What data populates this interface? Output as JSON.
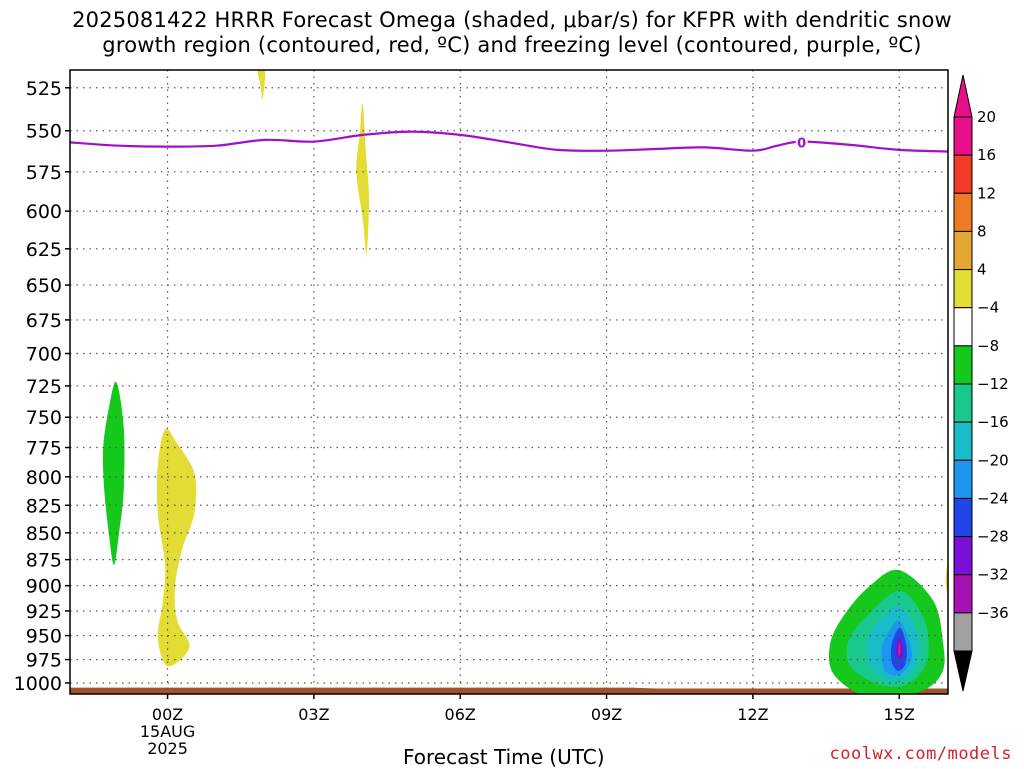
{
  "title_line1": "2025081422 HRRR Forecast Omega (shaded, μbar/s) for KFPR with dendritic snow",
  "title_line2": "growth region (contoured, red, ºC) and freezing level (contoured, purple, ºC)",
  "credit": "coolwx.com/models",
  "chart_data": {
    "type": "time-height contour",
    "xlabel": "Forecast Time (UTC)",
    "x_ticks": [
      {
        "label": "00Z",
        "hour": 0,
        "extra": [
          "15AUG",
          "2025"
        ]
      },
      {
        "label": "03Z",
        "hour": 3
      },
      {
        "label": "06Z",
        "hour": 6
      },
      {
        "label": "09Z",
        "hour": 9
      },
      {
        "label": "12Z",
        "hour": 12
      },
      {
        "label": "15Z",
        "hour": 15
      }
    ],
    "xlim": [
      -2,
      16
    ],
    "y_ticks": [
      525,
      550,
      575,
      600,
      625,
      650,
      675,
      700,
      725,
      750,
      775,
      800,
      825,
      850,
      875,
      900,
      925,
      950,
      975,
      1000
    ],
    "ylim": [
      1012,
      515
    ],
    "ylog": true,
    "grid": true,
    "colorbar": {
      "labels": [
        "20",
        "16",
        "12",
        "8",
        "4",
        "−4",
        "−8",
        "−12",
        "−16",
        "−20",
        "−24",
        "−28",
        "−32",
        "−36"
      ],
      "colors": [
        "#e8108a",
        "#f03c28",
        "#ee7a24",
        "#e6a732",
        "#e3dc34",
        "#ffffff",
        "#14c81c",
        "#18c88c",
        "#18bcc8",
        "#1c96ee",
        "#2046e8",
        "#7a10d8",
        "#a812b4",
        "#a0a0a0"
      ],
      "top_arrow_color": "#e8108a",
      "bottom_arrow_color": "#000000"
    },
    "freezing_level": {
      "color": "#a010c8",
      "label": "0",
      "label_at": [
        13.0,
        557
      ],
      "points": [
        [
          -2,
          557
        ],
        [
          -1,
          559
        ],
        [
          0,
          559.5
        ],
        [
          1,
          559
        ],
        [
          2,
          555.5
        ],
        [
          3,
          556.5
        ],
        [
          4,
          552.5
        ],
        [
          5,
          550.5
        ],
        [
          6,
          552.5
        ],
        [
          7,
          557
        ],
        [
          8,
          561.5
        ],
        [
          9,
          562
        ],
        [
          10,
          561
        ],
        [
          11,
          560
        ],
        [
          12,
          562
        ],
        [
          12.5,
          559
        ],
        [
          13,
          556.5
        ],
        [
          14,
          558.5
        ],
        [
          15,
          561.5
        ],
        [
          16,
          562.5
        ]
      ]
    },
    "omega_regions": [
      {
        "value": "4 to 8",
        "color": "#e3dc34",
        "points": [
          [
            1.85,
            515
          ],
          [
            2.0,
            515
          ],
          [
            1.95,
            531
          ],
          [
            1.9,
            523
          ]
        ]
      },
      {
        "value": "4 to 8",
        "color": "#e3dc34",
        "points": [
          [
            4.0,
            534
          ],
          [
            4.07,
            565
          ],
          [
            4.13,
            592
          ],
          [
            4.08,
            628
          ],
          [
            4.0,
            605
          ],
          [
            3.87,
            575
          ],
          [
            3.94,
            552
          ]
        ]
      },
      {
        "value": "−4 to −8",
        "color": "#14c81c",
        "points": [
          [
            -1.05,
            722
          ],
          [
            -0.9,
            758
          ],
          [
            -0.9,
            812
          ],
          [
            -1.0,
            852
          ],
          [
            -1.1,
            880
          ],
          [
            -1.2,
            852
          ],
          [
            -1.3,
            810
          ],
          [
            -1.32,
            775
          ],
          [
            -1.2,
            742
          ]
        ]
      },
      {
        "value": "4 to 8",
        "color": "#e3dc34",
        "points": [
          [
            -0.05,
            760
          ],
          [
            0.2,
            772
          ],
          [
            0.55,
            797
          ],
          [
            0.55,
            832
          ],
          [
            0.3,
            865
          ],
          [
            0.15,
            902
          ],
          [
            0.2,
            935
          ],
          [
            0.45,
            962
          ],
          [
            0.0,
            982
          ],
          [
            -0.2,
            952
          ],
          [
            -0.1,
            917
          ],
          [
            -0.05,
            880
          ],
          [
            -0.2,
            832
          ],
          [
            -0.2,
            790
          ]
        ]
      },
      {
        "value": "4 to 8",
        "color": "#e3dc34",
        "points": [
          [
            16.05,
            870
          ],
          [
            16.05,
            915
          ],
          [
            15.95,
            895
          ]
        ]
      },
      {
        "value": "−4 to −8",
        "color": "#14c81c",
        "points": [
          [
            15.0,
            885
          ],
          [
            15.7,
            915
          ],
          [
            15.9,
            958
          ],
          [
            15.9,
            986
          ],
          [
            15.6,
            1005
          ],
          [
            15.0,
            1015
          ],
          [
            14.4,
            1015
          ],
          [
            13.95,
            1005
          ],
          [
            13.6,
            985
          ],
          [
            13.6,
            955
          ],
          [
            13.9,
            927
          ],
          [
            14.4,
            900
          ]
        ]
      },
      {
        "value": "−8 to −12",
        "color": "#18c88c",
        "points": [
          [
            15.0,
            905
          ],
          [
            15.5,
            932
          ],
          [
            15.6,
            968
          ],
          [
            15.4,
            992
          ],
          [
            15.0,
            1004
          ],
          [
            14.5,
            1000
          ],
          [
            14.0,
            982
          ],
          [
            13.95,
            957
          ],
          [
            14.3,
            932
          ]
        ]
      },
      {
        "value": "−12 to −16",
        "color": "#18bcc8",
        "points": [
          [
            15.0,
            920
          ],
          [
            15.35,
            945
          ],
          [
            15.4,
            972
          ],
          [
            15.15,
            994
          ],
          [
            14.75,
            996
          ],
          [
            14.4,
            980
          ],
          [
            14.35,
            955
          ],
          [
            14.6,
            935
          ]
        ]
      },
      {
        "value": "−16 to −20",
        "color": "#1c96ee",
        "points": [
          [
            15.0,
            935
          ],
          [
            15.2,
            955
          ],
          [
            15.25,
            975
          ],
          [
            15.0,
            991
          ],
          [
            14.7,
            986
          ],
          [
            14.65,
            962
          ],
          [
            14.8,
            945
          ]
        ]
      },
      {
        "value": "−20 to −24",
        "color": "#2046e8",
        "points": [
          [
            15.02,
            942
          ],
          [
            15.15,
            962
          ],
          [
            15.12,
            980
          ],
          [
            14.98,
            987
          ],
          [
            14.85,
            978
          ],
          [
            14.85,
            958
          ]
        ]
      },
      {
        "value": "−24 to −28",
        "color": "#7a10d8",
        "points": [
          [
            15.02,
            952
          ],
          [
            15.08,
            965
          ],
          [
            15.03,
            975
          ],
          [
            14.95,
            970
          ],
          [
            14.95,
            958
          ]
        ]
      },
      {
        "value": "≥20",
        "color": "#e8108a",
        "points": [
          [
            15.01,
            957
          ],
          [
            15.03,
            966
          ],
          [
            14.99,
            972
          ],
          [
            14.98,
            962
          ]
        ]
      }
    ],
    "terrain": {
      "color": "#a0522d",
      "points": [
        [
          -2,
          1005
        ],
        [
          9.5,
          1005
        ],
        [
          10,
          1006
        ],
        [
          16,
          1006
        ],
        [
          16,
          1016
        ],
        [
          -2,
          1016
        ]
      ]
    }
  }
}
